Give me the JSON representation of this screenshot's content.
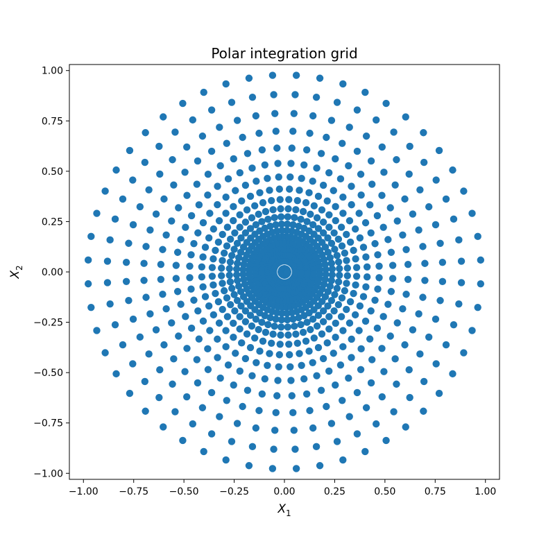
{
  "chart_data": {
    "type": "scatter",
    "title": "Polar integration grid",
    "xlabel": {
      "base": "X",
      "sub": "1"
    },
    "ylabel": {
      "base": "X",
      "sub": "2"
    },
    "xlim": [
      -1.07,
      1.07
    ],
    "ylim": [
      -1.03,
      1.03
    ],
    "xticks": [
      -1.0,
      -0.75,
      -0.5,
      -0.25,
      0.0,
      0.25,
      0.5,
      0.75,
      1.0
    ],
    "xtick_labels": [
      "−1.00",
      "−0.75",
      "−0.50",
      "−0.25",
      "0.00",
      "0.25",
      "0.50",
      "0.75",
      "1.00"
    ],
    "yticks": [
      -1.0,
      -0.75,
      -0.5,
      -0.25,
      0.0,
      0.25,
      0.5,
      0.75,
      1.0
    ],
    "ytick_labels": [
      "−1.00",
      "−0.75",
      "−0.50",
      "−0.25",
      "0.00",
      "0.25",
      "0.50",
      "0.75",
      "1.00"
    ],
    "grid": false,
    "marker_color": "#1f77b4",
    "series": [
      {
        "points_polar": {
          "radii": [
            0.0161,
            0.0548,
            0.0856,
            0.116,
            0.146,
            0.176,
            0.206,
            0.238,
            0.274,
            0.314,
            0.36,
            0.412,
            0.472,
            0.54,
            0.616,
            0.7,
            0.788,
            0.882,
            0.978
          ],
          "angles_per_ring": 52,
          "angle_offset_deg": 3.46
        }
      }
    ]
  }
}
